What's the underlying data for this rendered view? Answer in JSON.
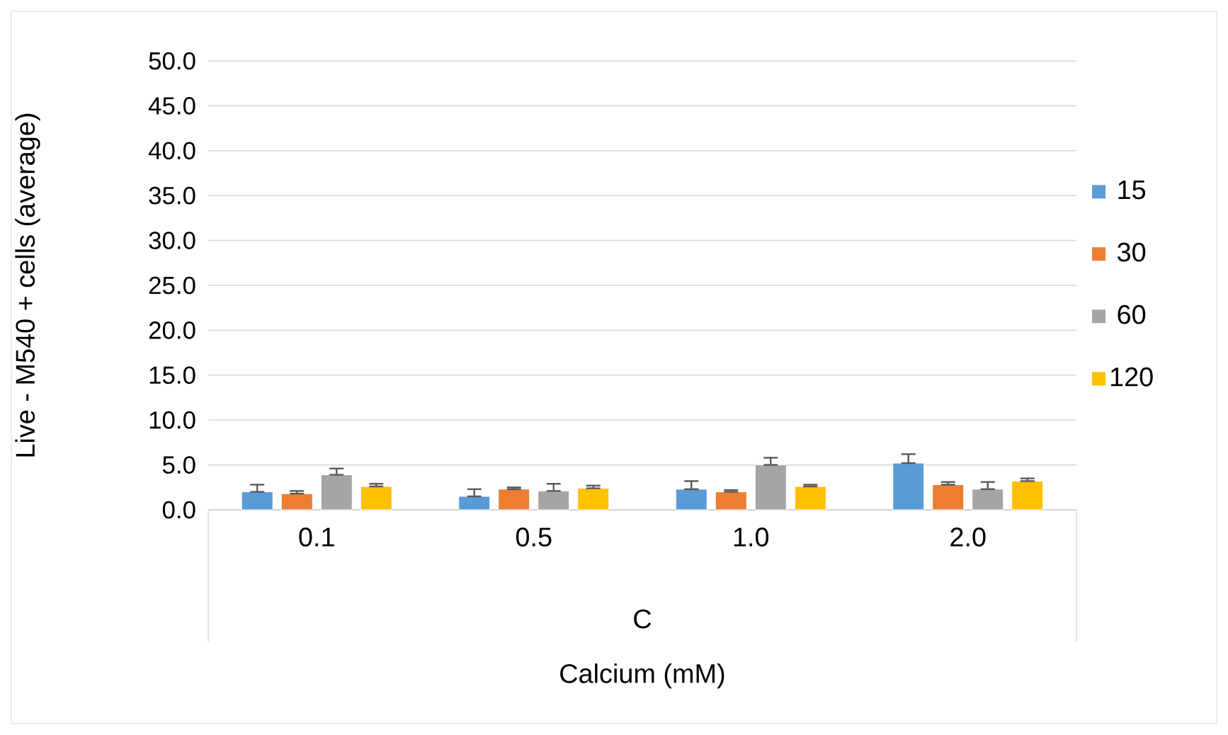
{
  "chart_data": {
    "type": "bar",
    "xlabel": "Calcium (mM)",
    "ylabel": "Live - M540 + cells (average)",
    "categories": [
      "0.1",
      "0.5",
      "1.0",
      "2.0"
    ],
    "series": [
      {
        "name": "15",
        "color": "#5b9bd5",
        "values": [
          2.0,
          1.5,
          2.3,
          5.2
        ],
        "errors": [
          [
            2.0,
            2.8
          ],
          [
            1.5,
            2.3
          ],
          [
            2.3,
            3.2
          ],
          [
            5.2,
            6.2
          ]
        ]
      },
      {
        "name": "30",
        "color": "#ed7d31",
        "values": [
          1.8,
          2.3,
          2.0,
          2.8
        ],
        "errors": [
          [
            1.8,
            2.1
          ],
          [
            2.3,
            2.5
          ],
          [
            2.0,
            2.2
          ],
          [
            2.8,
            3.1
          ]
        ]
      },
      {
        "name": "60",
        "color": "#a5a5a5",
        "values": [
          3.9,
          2.1,
          5.0,
          2.3
        ],
        "errors": [
          [
            3.9,
            4.6
          ],
          [
            2.1,
            2.9
          ],
          [
            5.0,
            5.8
          ],
          [
            2.3,
            3.1
          ]
        ]
      },
      {
        "name": "120",
        "color": "#ffc000",
        "values": [
          2.6,
          2.4,
          2.6,
          3.2
        ],
        "errors": [
          [
            2.6,
            2.9
          ],
          [
            2.4,
            2.7
          ],
          [
            2.6,
            2.8
          ],
          [
            3.2,
            3.5
          ]
        ]
      }
    ],
    "ylim": [
      0,
      50
    ],
    "yticks": [
      {
        "value": 0,
        "label": "0.0"
      },
      {
        "value": 5,
        "label": "5.0"
      },
      {
        "value": 10,
        "label": "10.0"
      },
      {
        "value": 15,
        "label": "15.0"
      },
      {
        "value": 20,
        "label": "20.0"
      },
      {
        "value": 25,
        "label": "25.0"
      },
      {
        "value": 30,
        "label": "30.0"
      },
      {
        "value": 35,
        "label": "35.0"
      },
      {
        "value": 40,
        "label": "40.0"
      },
      {
        "value": 45,
        "label": "45.0"
      },
      {
        "value": 50,
        "label": "50.0"
      }
    ],
    "annotations": [
      "C"
    ],
    "grid": "y",
    "legend": "right"
  }
}
